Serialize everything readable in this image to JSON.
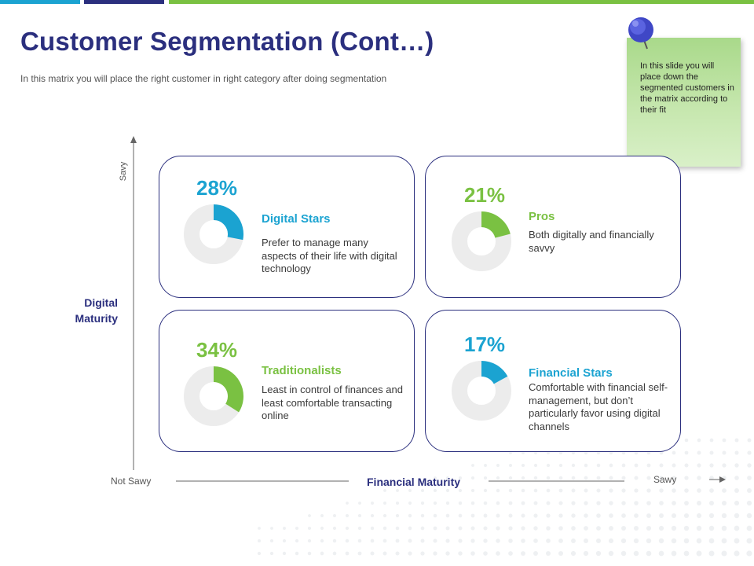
{
  "header": {
    "title": "Customer Segmentation (Cont…)",
    "subtitle": "In this matrix you will place the right customer in right category after doing segmentation"
  },
  "note": {
    "text": "In this slide you will place down the segmented customers in the matrix according to their fit"
  },
  "axes": {
    "y_top": "Savy",
    "y_label": "Digital Maturity",
    "x_left": "Not Sawy",
    "x_label": "Financial Maturity",
    "x_right": "Sawy"
  },
  "colors": {
    "navy": "#2b2f7e",
    "blue": "#1ba3d1",
    "green": "#7ac142",
    "track": "#ececec"
  },
  "segments": [
    {
      "percent": 28,
      "percent_label": "28%",
      "name": "Digital Stars",
      "description": "Prefer to manage many aspects of their life with digital technology",
      "color": "#1ba3d1"
    },
    {
      "percent": 21,
      "percent_label": "21%",
      "name": "Pros",
      "description": "Both digitally and financially savvy",
      "color": "#7ac142"
    },
    {
      "percent": 34,
      "percent_label": "34%",
      "name": "Traditionalists",
      "description": "Least in control of finances and least comfortable transacting online",
      "color": "#7ac142"
    },
    {
      "percent": 17,
      "percent_label": "17%",
      "name": "Financial Stars",
      "description": "Comfortable with financial self-management, but don’t particularly favor using digital channels",
      "color": "#1ba3d1"
    }
  ]
}
